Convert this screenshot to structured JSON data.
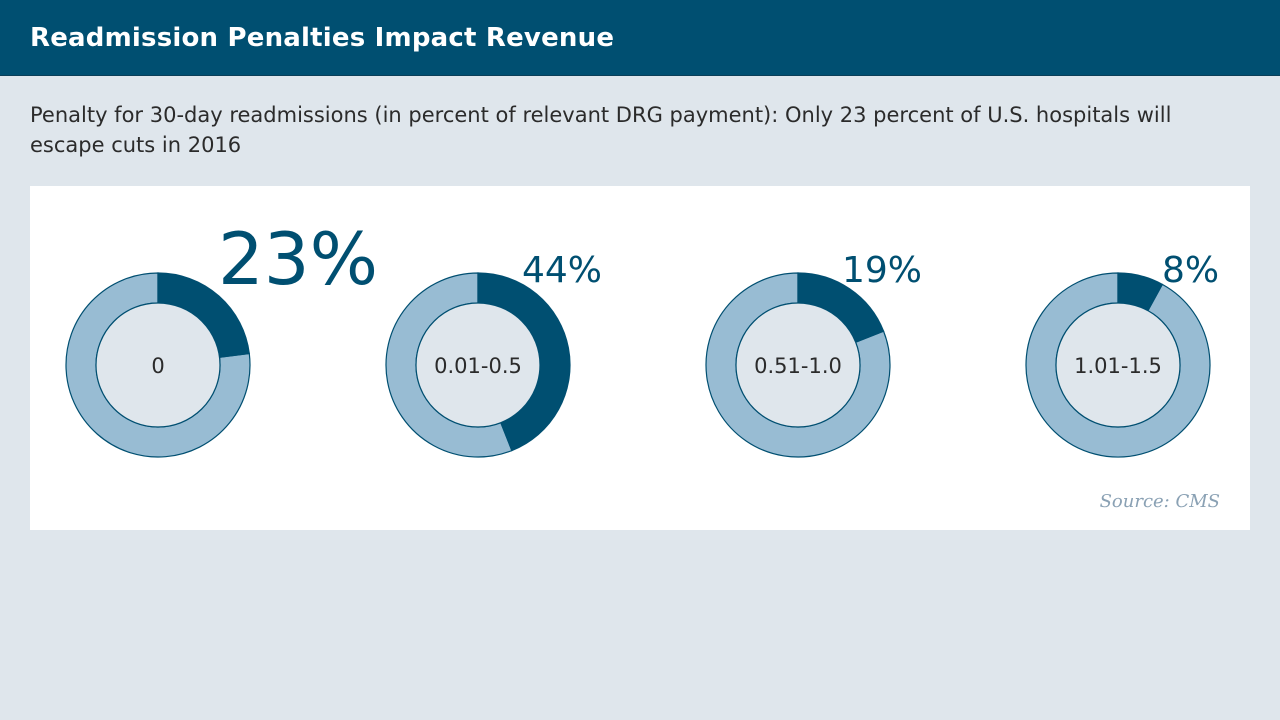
{
  "header": {
    "title": "Readmission Penalties Impact Revenue"
  },
  "subtitle": "Penalty for 30-day readmissions (in percent of relevant DRG payment): Only 23 percent of U.S. hospitals will escape cuts in 2016",
  "source": "Source: CMS",
  "colors": {
    "header_bg": "#004f71",
    "page_bg": "#dfe6ec",
    "value_arc": "#004f71",
    "remainder_arc": "#98bcd3",
    "center_fill": "#dfe6ec",
    "value_text": "#004f71"
  },
  "chart_data": {
    "type": "pie",
    "variant": "donut-multiples",
    "unit": "%",
    "categories": [
      "0",
      "0.01-0.5",
      "0.51-1.0",
      "1.01-1.5"
    ],
    "values": [
      23,
      44,
      19,
      8
    ],
    "value_labels": [
      "23%",
      "44%",
      "19%",
      "8%"
    ],
    "highlight_index": 0
  }
}
